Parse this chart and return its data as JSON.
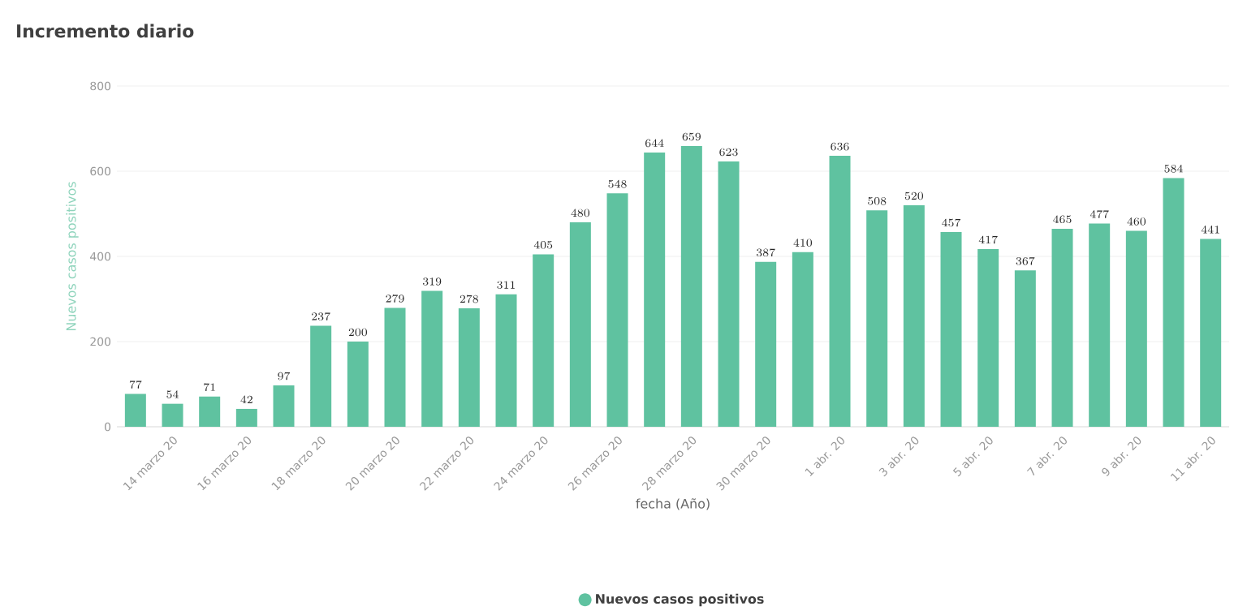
{
  "chart_data": {
    "type": "bar",
    "title": "Incremento diario",
    "xlabel": "fecha (Año)",
    "ylabel": "Nuevos casos positivos",
    "categories": [
      null,
      "14 marzo 20",
      null,
      "16 marzo 20",
      null,
      "18 marzo 20",
      null,
      "20 marzo 20",
      null,
      "22 marzo 20",
      null,
      "24 marzo 20",
      null,
      "26 marzo 20",
      null,
      "28 marzo 20",
      null,
      "30 marzo 20",
      null,
      "1 abr. 20",
      null,
      "3 abr. 20",
      null,
      "5 abr. 20",
      null,
      "7 abr. 20",
      null,
      "9 abr. 20",
      null,
      "11 abr. 20"
    ],
    "series": [
      {
        "name": "Nuevos casos positivos",
        "color": "#5fc2a0",
        "values": [
          77,
          54,
          71,
          42,
          97,
          237,
          200,
          279,
          319,
          278,
          311,
          405,
          480,
          548,
          644,
          659,
          623,
          387,
          410,
          636,
          508,
          520,
          457,
          417,
          367,
          465,
          477,
          460,
          584,
          441
        ]
      }
    ],
    "ylim": [
      0,
      800
    ],
    "yticks": [
      0,
      200,
      400,
      600,
      800
    ],
    "grid": "y",
    "legend": "bottom",
    "data_labels": true
  }
}
